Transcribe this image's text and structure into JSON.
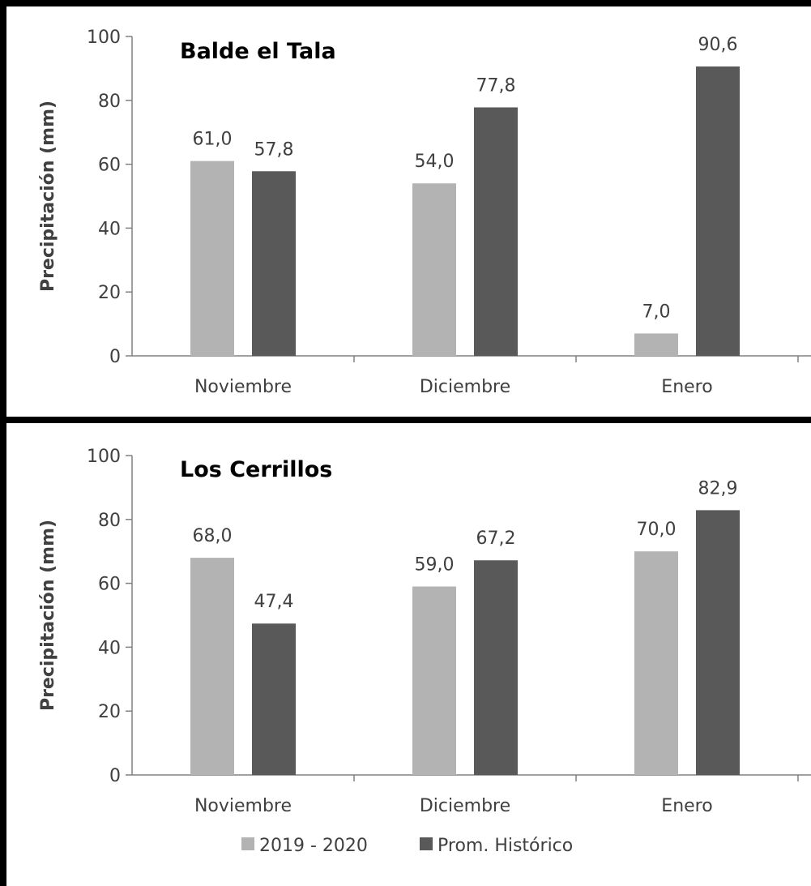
{
  "chart_data": [
    {
      "type": "bar",
      "title": "Balde el Tala",
      "ylabel": "Precipitación (mm)",
      "xlabel": "",
      "ylim": [
        0,
        100
      ],
      "yticks": [
        "0",
        "20",
        "40",
        "60",
        "80",
        "100"
      ],
      "categories": [
        "Noviembre",
        "Diciembre",
        "Enero"
      ],
      "series": [
        {
          "name": "2019 - 2020",
          "values": [
            61.0,
            54.0,
            7.0
          ],
          "labels": [
            "61,0",
            "54,0",
            "7,0"
          ],
          "color": "#b3b3b3"
        },
        {
          "name": "Prom. Histórico",
          "values": [
            57.8,
            77.8,
            90.6
          ],
          "labels": [
            "57,8",
            "77,8",
            "90,6"
          ],
          "color": "#595959"
        }
      ],
      "grid": false
    },
    {
      "type": "bar",
      "title": "Los Cerrillos",
      "ylabel": "Precipitación (mm)",
      "xlabel": "",
      "ylim": [
        0,
        100
      ],
      "yticks": [
        "0",
        "20",
        "40",
        "60",
        "80",
        "100"
      ],
      "categories": [
        "Noviembre",
        "Diciembre",
        "Enero"
      ],
      "series": [
        {
          "name": "2019 - 2020",
          "values": [
            68.0,
            59.0,
            70.0
          ],
          "labels": [
            "68,0",
            "59,0",
            "70,0"
          ],
          "color": "#b3b3b3"
        },
        {
          "name": "Prom. Histórico",
          "values": [
            47.4,
            67.2,
            82.9
          ],
          "labels": [
            "47,4",
            "67,2",
            "82,9"
          ],
          "color": "#595959"
        }
      ],
      "grid": false,
      "legend": "bottom"
    }
  ],
  "legend": {
    "items": [
      {
        "label": "2019 - 2020",
        "color": "#b3b3b3"
      },
      {
        "label": "Prom. Histórico",
        "color": "#595959"
      }
    ]
  }
}
